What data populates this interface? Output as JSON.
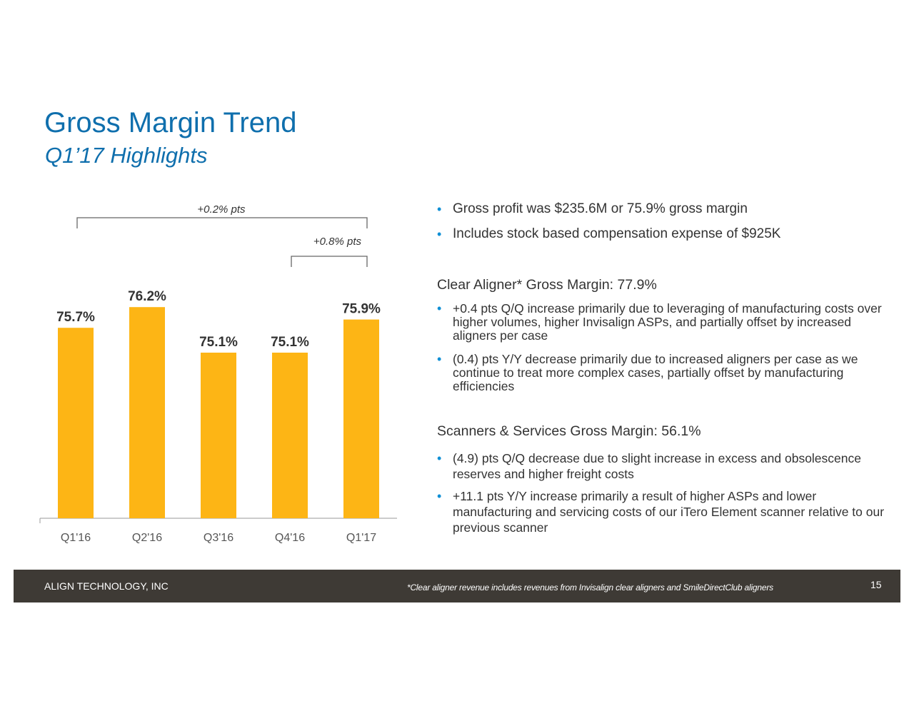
{
  "title": "Gross Margin Trend",
  "subtitle": "Q1’17 Highlights",
  "chart_data": {
    "type": "bar",
    "categories": [
      "Q1'16",
      "Q2'16",
      "Q3'16",
      "Q4'16",
      "Q1'17"
    ],
    "values": [
      75.7,
      76.2,
      75.1,
      75.1,
      75.9
    ],
    "data_labels": [
      "75.7%",
      "76.2%",
      "75.1%",
      "75.1%",
      "75.9%"
    ],
    "bar_color": "#fdb515",
    "ylim": [
      0,
      77.5
    ],
    "grid": false,
    "annotations": [
      {
        "text": "+0.2% pts",
        "from": "Q1'16",
        "to": "Q1'17"
      },
      {
        "text": "+0.8% pts",
        "from": "Q4'16",
        "to": "Q1'17"
      }
    ]
  },
  "highlights": [
    "Gross profit was $235.6M or 75.9% gross margin",
    "Includes stock based compensation expense of $925K"
  ],
  "clear_aligner": {
    "heading": "Clear Aligner* Gross Margin: 77.9%",
    "bullets": [
      {
        "lead": "+0.4 pts Q/Q increase",
        "rest": " primarily due to leveraging of manufacturing costs over higher volumes, higher Invisalign ASPs, and partially offset by increased aligners per case"
      },
      {
        "lead": "(0.4) pts Y/Y decrease",
        "rest": " primarily due to increased aligners per case as we continue to treat more complex cases, partially offset by manufacturing efficiencies"
      }
    ]
  },
  "scanners": {
    "heading": "Scanners & Services Gross Margin: 56.1%",
    "bullets": [
      {
        "lead": "(4.9) pts Q/Q decrease",
        "rest": " due to slight increase in excess and obsolescence reserves and higher freight costs"
      },
      {
        "lead": "+11.1 pts Y/Y increase",
        "rest": " primarily a result of higher ASPs and lower manufacturing and servicing costs of our iTero Element scanner relative to our previous scanner"
      }
    ]
  },
  "footer": {
    "company": "ALIGN TECHNOLOGY, INC",
    "note": "*Clear aligner revenue includes revenues from Invisalign clear aligners and SmileDirectClub aligners",
    "page": "15"
  },
  "colors": {
    "title": "#0f6fad",
    "bar": "#fdb515",
    "bullet": "#0f8fd5",
    "footer_bg": "#3e3a35"
  }
}
